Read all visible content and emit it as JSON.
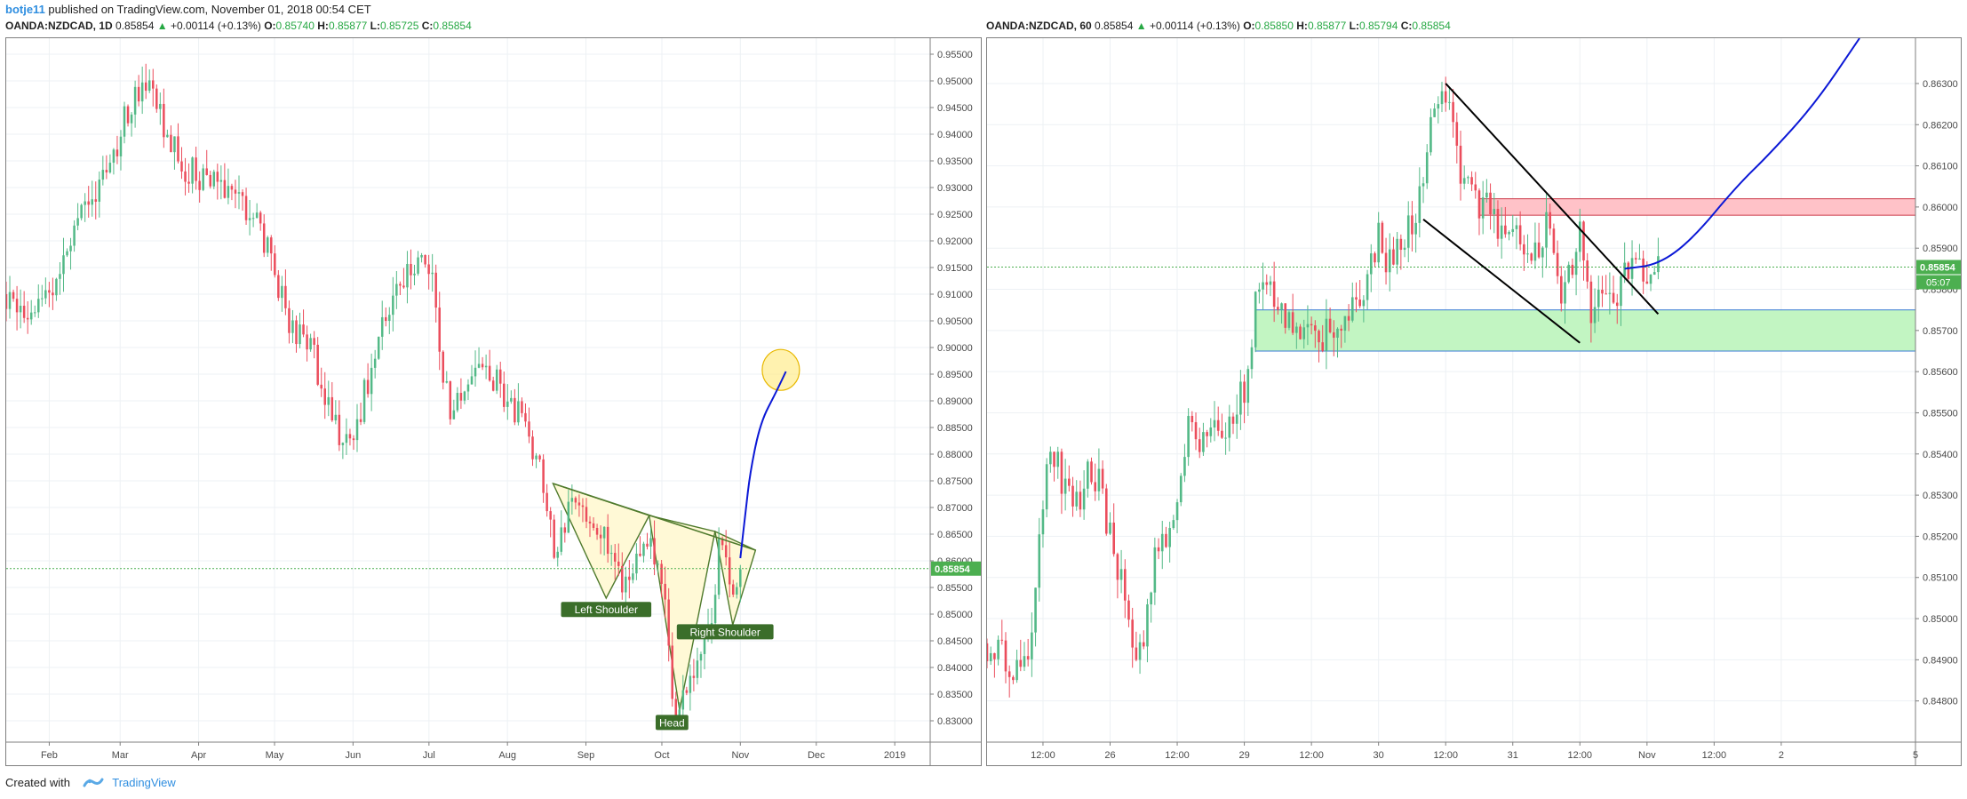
{
  "header": {
    "author": "botje11",
    "text": "published on TradingView.com, November 01, 2018 00:54 CET"
  },
  "footer": {
    "created_with": "Created with",
    "brand": "TradingView"
  },
  "colors": {
    "up": "#53b987",
    "down": "#eb4d5c",
    "price_label": "#4caf50",
    "blue_path": "#0b18d6"
  },
  "chart_data": [
    {
      "type": "candlestick",
      "legend": {
        "symbol": "OANDA:NZDCAD, 1D",
        "last": "0.85854",
        "change": "+0.00114 (+0.13%)",
        "o_label": "O:",
        "o": "0.85740",
        "h_label": "H:",
        "h": "0.85877",
        "l_label": "L:",
        "l": "0.85725",
        "c_label": "C:",
        "c": "0.85854"
      },
      "price_label": "0.85854",
      "price_line": 0.85854,
      "ylim": [
        0.826,
        0.958
      ],
      "yticks": [
        "0.95500",
        "0.95000",
        "0.94500",
        "0.94000",
        "0.93500",
        "0.93000",
        "0.92500",
        "0.92000",
        "0.91500",
        "0.91000",
        "0.90500",
        "0.90000",
        "0.89500",
        "0.89000",
        "0.88500",
        "0.88000",
        "0.87500",
        "0.87000",
        "0.86500",
        "0.86000",
        "0.85500",
        "0.85000",
        "0.84500",
        "0.84000",
        "0.83500",
        "0.83000"
      ],
      "xlim": [
        "2018-01-15",
        "2019-01-15"
      ],
      "xticks": [
        {
          "date": "2018-02-01",
          "label": "Feb"
        },
        {
          "date": "2018-03-01",
          "label": "Mar"
        },
        {
          "date": "2018-04-01",
          "label": "Apr"
        },
        {
          "date": "2018-05-01",
          "label": "May"
        },
        {
          "date": "2018-06-01",
          "label": "Jun"
        },
        {
          "date": "2018-07-01",
          "label": "Jul"
        },
        {
          "date": "2018-08-01",
          "label": "Aug"
        },
        {
          "date": "2018-09-01",
          "label": "Sep"
        },
        {
          "date": "2018-10-01",
          "label": "Oct"
        },
        {
          "date": "2018-11-01",
          "label": "Nov"
        },
        {
          "date": "2018-12-01",
          "label": "Dec"
        },
        {
          "date": "2019-01-01",
          "label": "2019"
        }
      ],
      "close_path": [
        [
          "2018-01-15",
          0.91
        ],
        [
          "2018-01-22",
          0.906
        ],
        [
          "2018-01-29",
          0.909
        ],
        [
          "2018-02-05",
          0.914
        ],
        [
          "2018-02-12",
          0.922
        ],
        [
          "2018-02-19",
          0.93
        ],
        [
          "2018-02-26",
          0.936
        ],
        [
          "2018-03-05",
          0.946
        ],
        [
          "2018-03-12",
          0.95
        ],
        [
          "2018-03-19",
          0.94
        ],
        [
          "2018-03-26",
          0.934
        ],
        [
          "2018-04-02",
          0.932
        ],
        [
          "2018-04-09",
          0.931
        ],
        [
          "2018-04-16",
          0.929
        ],
        [
          "2018-04-23",
          0.924
        ],
        [
          "2018-04-30",
          0.916
        ],
        [
          "2018-05-07",
          0.904
        ],
        [
          "2018-05-14",
          0.901
        ],
        [
          "2018-05-21",
          0.892
        ],
        [
          "2018-05-28",
          0.881
        ],
        [
          "2018-06-04",
          0.888
        ],
        [
          "2018-06-11",
          0.902
        ],
        [
          "2018-06-18",
          0.911
        ],
        [
          "2018-06-25",
          0.916
        ],
        [
          "2018-07-02",
          0.914
        ],
        [
          "2018-07-09",
          0.887
        ],
        [
          "2018-07-16",
          0.893
        ],
        [
          "2018-07-23",
          0.895
        ],
        [
          "2018-07-30",
          0.892
        ],
        [
          "2018-08-06",
          0.887
        ],
        [
          "2018-08-13",
          0.878
        ],
        [
          "2018-08-20",
          0.862
        ],
        [
          "2018-08-27",
          0.872
        ],
        [
          "2018-09-03",
          0.868
        ],
        [
          "2018-09-10",
          0.862
        ],
        [
          "2018-09-17",
          0.854
        ],
        [
          "2018-09-24",
          0.864
        ],
        [
          "2018-10-01",
          0.858
        ],
        [
          "2018-10-05",
          0.835
        ],
        [
          "2018-10-08",
          0.832
        ],
        [
          "2018-10-15",
          0.843
        ],
        [
          "2018-10-22",
          0.853
        ],
        [
          "2018-10-24",
          0.864
        ],
        [
          "2018-10-29",
          0.855
        ],
        [
          "2018-11-01",
          0.8585
        ]
      ],
      "pattern_polygons": [
        [
          [
            "2018-08-19",
            0.8745
          ],
          [
            "2018-09-09",
            0.853
          ],
          [
            "2018-09-26",
            0.8685
          ]
        ],
        [
          [
            "2018-09-26",
            0.8685
          ],
          [
            "2018-10-08",
            0.832
          ],
          [
            "2018-10-22",
            0.8655
          ]
        ],
        [
          [
            "2018-10-22",
            0.8655
          ],
          [
            "2018-10-29",
            0.848
          ],
          [
            "2018-11-07",
            0.862
          ]
        ]
      ],
      "neckline": [
        [
          "2018-08-19",
          0.8745
        ],
        [
          "2018-11-07",
          0.862
        ]
      ],
      "labels": [
        {
          "text": "Left Shoulder",
          "date": "2018-09-09",
          "price": 0.8508
        },
        {
          "text": "Head",
          "date": "2018-10-05",
          "price": 0.8296
        },
        {
          "text": "Right Shoulder",
          "date": "2018-10-26",
          "price": 0.8466
        }
      ],
      "projection": [
        [
          "2018-11-01",
          0.8605
        ],
        [
          "2018-11-03",
          0.869
        ],
        [
          "2018-11-05",
          0.877
        ],
        [
          "2018-11-09",
          0.886
        ],
        [
          "2018-11-15",
          0.8915
        ],
        [
          "2018-11-19",
          0.8955
        ]
      ],
      "target_circle": {
        "date": "2018-11-17",
        "price": 0.8958
      }
    },
    {
      "type": "candlestick",
      "legend": {
        "symbol": "OANDA:NZDCAD, 60",
        "last": "0.85854",
        "change": "+0.00114 (+0.13%)",
        "o_label": "O:",
        "o": "0.85850",
        "h_label": "H:",
        "h": "0.85877",
        "l_label": "L:",
        "l": "0.85794",
        "c_label": "C:",
        "c": "0.85854"
      },
      "price_label": "0.85854",
      "countdown_label": "05:07",
      "price_line": 0.85854,
      "ylim": [
        0.847,
        0.8641
      ],
      "yticks": [
        "0.86300",
        "0.86200",
        "0.86100",
        "0.86000",
        "0.85900",
        "0.85800",
        "0.85700",
        "0.85600",
        "0.85500",
        "0.85400",
        "0.85300",
        "0.85200",
        "0.85100",
        "0.85000",
        "0.84900",
        "0.84800"
      ],
      "xlim": [
        0,
        83
      ],
      "xticks": [
        {
          "x": 5,
          "label": "12:00"
        },
        {
          "x": 11,
          "label": "26"
        },
        {
          "x": 17,
          "label": "12:00"
        },
        {
          "x": 23,
          "label": "29"
        },
        {
          "x": 29,
          "label": "12:00"
        },
        {
          "x": 35,
          "label": "30"
        },
        {
          "x": 41,
          "label": "12:00"
        },
        {
          "x": 47,
          "label": "31"
        },
        {
          "x": 53,
          "label": "12:00"
        },
        {
          "x": 59,
          "label": "Nov"
        },
        {
          "x": 65,
          "label": "12:00"
        },
        {
          "x": 71,
          "label": "2"
        },
        {
          "x": 83,
          "label": "5"
        }
      ],
      "close_path": [
        [
          0,
          0.8494
        ],
        [
          2,
          0.849
        ],
        [
          3,
          0.8488
        ],
        [
          4,
          0.8497
        ],
        [
          5,
          0.853
        ],
        [
          6,
          0.854
        ],
        [
          7,
          0.8532
        ],
        [
          8,
          0.8528
        ],
        [
          9,
          0.8536
        ],
        [
          10,
          0.8532
        ],
        [
          12,
          0.851
        ],
        [
          13,
          0.8492
        ],
        [
          14,
          0.8495
        ],
        [
          15,
          0.8515
        ],
        [
          16,
          0.852
        ],
        [
          17,
          0.853
        ],
        [
          18,
          0.8545
        ],
        [
          19,
          0.854
        ],
        [
          20,
          0.8547
        ],
        [
          21,
          0.8545
        ],
        [
          22,
          0.855
        ],
        [
          23,
          0.8555
        ],
        [
          24,
          0.8578
        ],
        [
          25,
          0.858
        ],
        [
          26,
          0.8575
        ],
        [
          27,
          0.8573
        ],
        [
          28,
          0.857
        ],
        [
          29,
          0.8573
        ],
        [
          30,
          0.8568
        ],
        [
          31,
          0.8572
        ],
        [
          32,
          0.8574
        ],
        [
          33,
          0.8576
        ],
        [
          34,
          0.8584
        ],
        [
          35,
          0.8593
        ],
        [
          36,
          0.8586
        ],
        [
          37,
          0.859
        ],
        [
          38,
          0.8596
        ],
        [
          39,
          0.8605
        ],
        [
          40,
          0.8625
        ],
        [
          41,
          0.8628
        ],
        [
          42,
          0.8612
        ],
        [
          43,
          0.8605
        ],
        [
          44,
          0.8599
        ],
        [
          45,
          0.86
        ],
        [
          46,
          0.8594
        ],
        [
          47,
          0.8595
        ],
        [
          48,
          0.859
        ],
        [
          49,
          0.859
        ],
        [
          50,
          0.8596
        ],
        [
          51,
          0.858
        ],
        [
          52,
          0.8582
        ],
        [
          53,
          0.8598
        ],
        [
          54,
          0.8572
        ],
        [
          55,
          0.8578
        ],
        [
          56,
          0.8575
        ],
        [
          57,
          0.8582
        ],
        [
          58,
          0.8588
        ],
        [
          59,
          0.8578
        ],
        [
          60,
          0.8585
        ]
      ],
      "channel_lines": [
        [
          [
            41,
            0.863
          ],
          [
            60,
            0.8574
          ]
        ],
        [
          [
            39,
            0.8597
          ],
          [
            53,
            0.8567
          ]
        ]
      ],
      "zones": [
        {
          "name": "resistance",
          "from_x": 44,
          "to_x": 83,
          "low": 0.8598,
          "high": 0.8602,
          "fill": "#ffc2c8",
          "stroke": "#cc3b4a"
        },
        {
          "name": "support",
          "from_x": 24,
          "to_x": 83,
          "low": 0.8565,
          "high": 0.8575,
          "fill": "#c2f5c2",
          "stroke": "#3a7bd5"
        }
      ],
      "projection": [
        [
          57,
          0.8585
        ],
        [
          60,
          0.8586
        ],
        [
          63,
          0.8592
        ],
        [
          67,
          0.8605
        ],
        [
          70,
          0.8613
        ],
        [
          74,
          0.8625
        ],
        [
          78,
          0.8641
        ]
      ]
    }
  ]
}
